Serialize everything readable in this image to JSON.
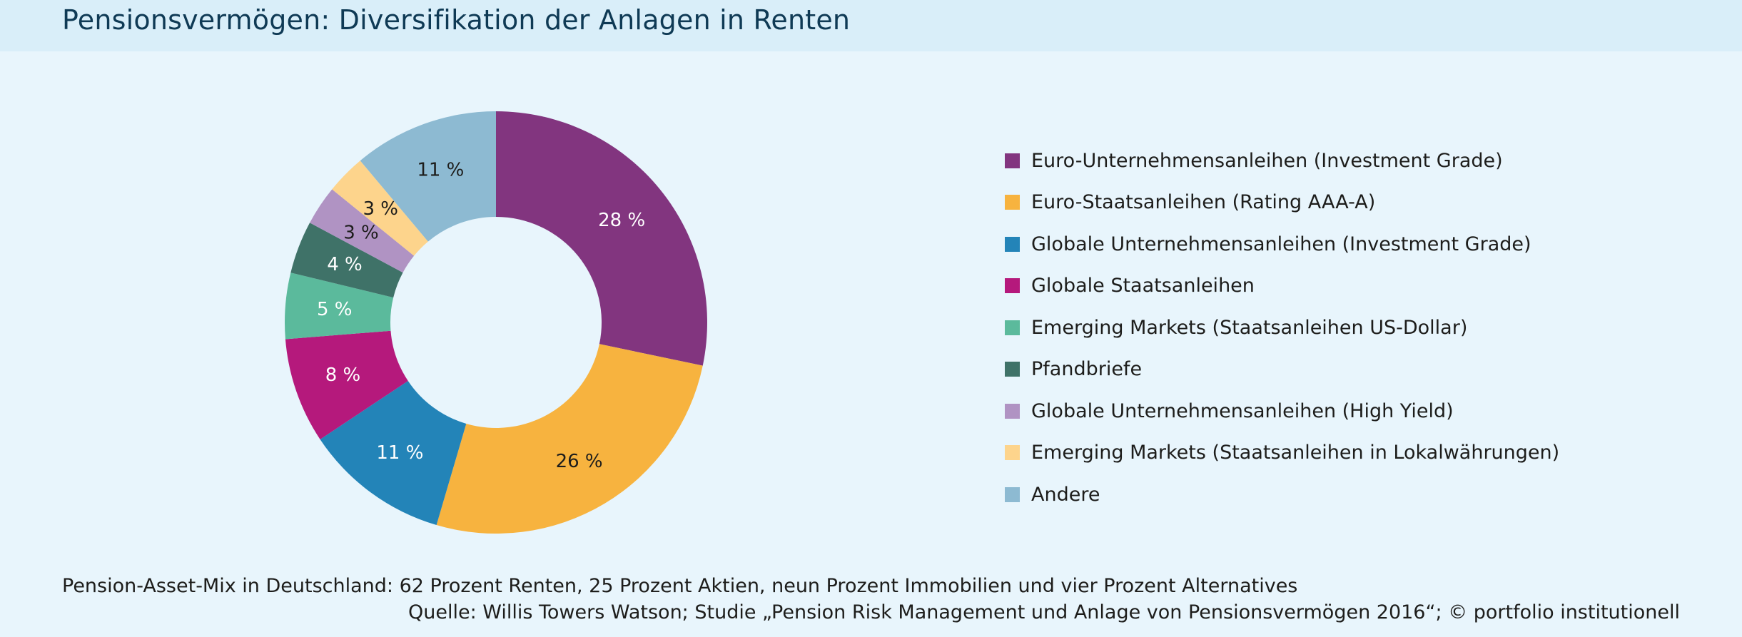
{
  "header": {
    "title": "Pensionsvermögen: Diversifikation der Anlagen in Renten"
  },
  "colors": {
    "background": "#e8f5fc",
    "title_bar": "#d9eef9",
    "title_text": "#0f3a55"
  },
  "chart_data": {
    "type": "pie",
    "variant": "donut",
    "title": "",
    "unit": "%",
    "legend_position": "right",
    "slices": [
      {
        "name": "Euro-Unternehmensanleihen (Investment Grade)",
        "value": 28,
        "label": "28 %",
        "color": "#82357f",
        "label_color": "#ffffff"
      },
      {
        "name": "Euro-Staatsanleihen (Rating AAA-A)",
        "value": 26,
        "label": "26 %",
        "color": "#f7b33f",
        "label_color": "#1d1d1b"
      },
      {
        "name": "Globale Unternehmensanleihen (Investment Grade)",
        "value": 11,
        "label": "11 %",
        "color": "#2384b8",
        "label_color": "#ffffff"
      },
      {
        "name": "Globale Staatsanleihen",
        "value": 8,
        "label": "8 %",
        "color": "#b5197c",
        "label_color": "#ffffff"
      },
      {
        "name": "Emerging Markets (Staatsanleihen US-Dollar)",
        "value": 5,
        "label": "5 %",
        "color": "#5bba9c",
        "label_color": "#ffffff"
      },
      {
        "name": "Pfandbriefe",
        "value": 4,
        "label": "4 %",
        "color": "#3f7268",
        "label_color": "#ffffff"
      },
      {
        "name": "Globale Unternehmensanleihen (High Yield)",
        "value": 3,
        "label": "3 %",
        "color": "#b093c3",
        "label_color": "#1d1d1b"
      },
      {
        "name": "Emerging Markets (Staatsanleihen in Lokalwährungen)",
        "value": 3,
        "label": "3 %",
        "color": "#fdd48c",
        "label_color": "#1d1d1b"
      },
      {
        "name": "Andere",
        "value": 11,
        "label": "11 %",
        "color": "#8dbad2",
        "label_color": "#1d1d1b"
      }
    ]
  },
  "footer": {
    "note": "Pension-Asset-Mix in Deutschland: 62 Prozent Renten, 25 Prozent Aktien, neun Prozent Immobilien und vier Prozent Alternatives",
    "source": "Quelle: Willis Towers Watson; Studie „Pension Risk Management und Anlage von Pensionsvermögen 2016“; © portfolio institutionell"
  }
}
